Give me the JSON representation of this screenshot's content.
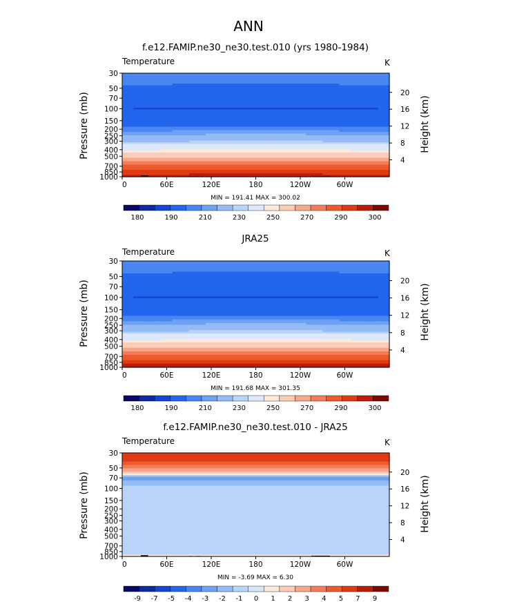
{
  "figure": {
    "super_title": "ANN",
    "variable": "Temperature",
    "units": "K",
    "left_axis_label": "Pressure  (mb)",
    "right_axis_label": "Height  (km)"
  },
  "palettes": {
    "absolute": [
      "#08086b",
      "#0d2a9e",
      "#1446d6",
      "#2266ee",
      "#4a86f2",
      "#6ea0f4",
      "#93bbf6",
      "#bad4f8",
      "#dde9fb",
      "#fde9dc",
      "#fbcdb6",
      "#f8a88a",
      "#f47c59",
      "#ef5a2d",
      "#df3b13",
      "#b81f0b",
      "#7f0a05"
    ],
    "difference": [
      "#08086b",
      "#0d2a9e",
      "#1446d6",
      "#2266ee",
      "#4a86f2",
      "#6ea0f4",
      "#93bbf6",
      "#bad4f8",
      "#d6e6fb",
      "#fde9dc",
      "#fbcdb6",
      "#f8a88a",
      "#f47c59",
      "#ef5a2d",
      "#df3b13",
      "#b81f0b",
      "#7f0a05"
    ]
  },
  "chart_data": [
    {
      "type": "heatmap",
      "title": "f.e12.FAMIP.ne30_ne30.test.010 (yrs 1980-1984)",
      "x_ticks": [
        "0",
        "60E",
        "120E",
        "180",
        "120W",
        "60W"
      ],
      "x_tick_values": [
        0,
        60,
        120,
        180,
        240,
        300
      ],
      "xlim": [
        0,
        360
      ],
      "pressure_ticks": [
        "30",
        "50",
        "70",
        "100",
        "150",
        "200",
        "250",
        "300",
        "400",
        "500",
        "700",
        "850",
        "1000"
      ],
      "pressure_values": [
        30,
        50,
        70,
        100,
        150,
        200,
        250,
        300,
        400,
        500,
        700,
        850,
        1000
      ],
      "ylim_mb": [
        1000,
        30
      ],
      "height_ticks": [
        "20",
        "16",
        "12",
        "8",
        "4"
      ],
      "height_values_km": [
        20,
        16,
        12,
        8,
        4
      ],
      "min_label": "MIN =  191.41   MAX =  300.02",
      "min": 191.41,
      "max": 300.02,
      "palette": "absolute",
      "levels": [
        185,
        190,
        195,
        200,
        205,
        210,
        215,
        220,
        225,
        230,
        235,
        240,
        245,
        250,
        255,
        260,
        265,
        270,
        275,
        280,
        285,
        290,
        295
      ],
      "levels_used": [
        185,
        190,
        195,
        200,
        205,
        210,
        215,
        220,
        225,
        230,
        235,
        240,
        245,
        250,
        255,
        260,
        265,
        270,
        275,
        280,
        285,
        290,
        295
      ],
      "color_index": [
        2,
        3,
        3,
        3,
        4,
        5,
        6,
        6,
        7,
        8,
        9,
        9,
        10,
        10,
        11,
        11,
        12,
        12,
        13,
        13,
        14,
        14,
        15
      ],
      "colorbar_ticks": [
        "180",
        "190",
        "210",
        "230",
        "250",
        "270",
        "290",
        "300"
      ],
      "profile": [
        [
          30,
          214
        ],
        [
          50,
          209
        ],
        [
          70,
          203
        ],
        [
          100,
          200
        ],
        [
          150,
          206
        ],
        [
          200,
          212
        ],
        [
          250,
          221
        ],
        [
          300,
          229
        ],
        [
          400,
          244
        ],
        [
          500,
          256
        ],
        [
          700,
          273
        ],
        [
          850,
          282
        ],
        [
          1000,
          287
        ]
      ],
      "equator_bump": 10,
      "terrain": true
    },
    {
      "type": "heatmap",
      "title": "JRA25",
      "x_ticks": [
        "0",
        "60E",
        "120E",
        "180",
        "120W",
        "60W"
      ],
      "x_tick_values": [
        0,
        60,
        120,
        180,
        240,
        300
      ],
      "xlim": [
        0,
        360
      ],
      "pressure_ticks": [
        "30",
        "50",
        "70",
        "100",
        "150",
        "200",
        "250",
        "300",
        "400",
        "500",
        "700",
        "850",
        "1000"
      ],
      "pressure_values": [
        30,
        50,
        70,
        100,
        150,
        200,
        250,
        300,
        400,
        500,
        700,
        850,
        1000
      ],
      "ylim_mb": [
        1000,
        30
      ],
      "height_ticks": [
        "20",
        "16",
        "12",
        "8",
        "4"
      ],
      "height_values_km": [
        20,
        16,
        12,
        8,
        4
      ],
      "min_label": "MIN =  191.68   MAX =  301.35",
      "min": 191.68,
      "max": 301.35,
      "palette": "absolute",
      "levels": [
        185,
        190,
        195,
        200,
        205,
        210,
        215,
        220,
        225,
        230,
        235,
        240,
        245,
        250,
        255,
        260,
        265,
        270,
        275,
        280,
        285,
        290,
        295
      ],
      "colorbar_ticks": [
        "180",
        "190",
        "210",
        "230",
        "250",
        "270",
        "290",
        "300"
      ],
      "profile": [
        [
          30,
          214
        ],
        [
          50,
          209
        ],
        [
          70,
          204
        ],
        [
          100,
          200
        ],
        [
          150,
          205
        ],
        [
          200,
          212
        ],
        [
          250,
          221
        ],
        [
          300,
          229
        ],
        [
          400,
          244
        ],
        [
          500,
          256
        ],
        [
          700,
          273
        ],
        [
          850,
          283
        ],
        [
          1000,
          289
        ]
      ],
      "equator_bump": 10,
      "terrain": false
    },
    {
      "type": "heatmap",
      "title": "f.e12.FAMIP.ne30_ne30.test.010 - JRA25",
      "x_ticks": [
        "0",
        "60E",
        "120E",
        "180",
        "120W",
        "60W"
      ],
      "x_tick_values": [
        0,
        60,
        120,
        180,
        240,
        300
      ],
      "xlim": [
        0,
        360
      ],
      "pressure_ticks": [
        "30",
        "50",
        "70",
        "100",
        "150",
        "200",
        "250",
        "300",
        "400",
        "500",
        "700",
        "850",
        "1000"
      ],
      "pressure_values": [
        30,
        50,
        70,
        100,
        150,
        200,
        250,
        300,
        400,
        500,
        700,
        850,
        1000
      ],
      "ylim_mb": [
        1000,
        30
      ],
      "height_ticks": [
        "20",
        "16",
        "12",
        "8",
        "4"
      ],
      "height_values_km": [
        20,
        16,
        12,
        8,
        4
      ],
      "min_label": "MIN =   -3.69   MAX =    6.30",
      "min": -3.69,
      "max": 6.3,
      "palette": "difference",
      "levels": [
        -9,
        -7,
        -5,
        -4,
        -3,
        -2,
        -1,
        0,
        1,
        2,
        3,
        4,
        5,
        7,
        9
      ],
      "colorbar_ticks": [
        "-9",
        "-7",
        "-5",
        "-4",
        "-3",
        "-2",
        "-1",
        "0",
        "1",
        "2",
        "3",
        "4",
        "5",
        "7",
        "9"
      ],
      "profile": [
        [
          30,
          5.6
        ],
        [
          40,
          5.0
        ],
        [
          50,
          3.4
        ],
        [
          60,
          1.1
        ],
        [
          70,
          -2.6
        ],
        [
          80,
          -1.5
        ],
        [
          100,
          -0.4
        ],
        [
          150,
          -0.4
        ],
        [
          200,
          -0.5
        ],
        [
          300,
          -0.4
        ],
        [
          500,
          -0.4
        ],
        [
          700,
          -0.4
        ],
        [
          900,
          -0.3
        ],
        [
          1000,
          0.3
        ]
      ],
      "equator_bump": 0,
      "terrain": true
    }
  ]
}
